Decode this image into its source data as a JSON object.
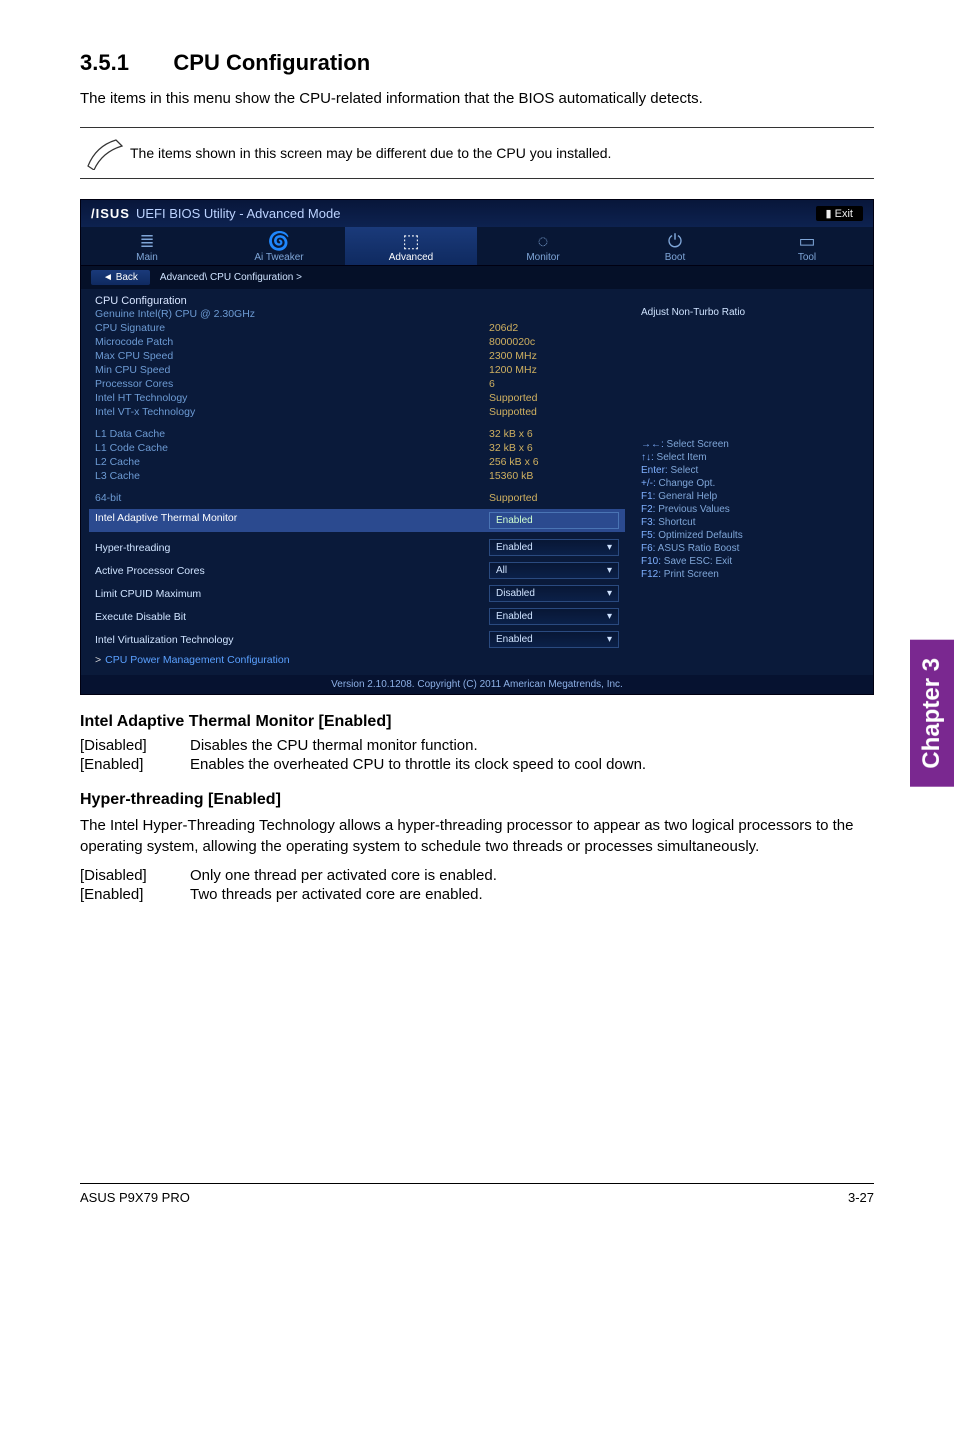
{
  "chapter_tab": "Chapter 3",
  "heading": {
    "num": "3.5.1",
    "title": "CPU Configuration"
  },
  "intro": "The items in this menu show the CPU-related information that the BIOS automatically detects.",
  "note": "The items shown in this screen may be different due to the CPU you installed.",
  "bios": {
    "brand": "/ISUS",
    "title": "UEFI BIOS Utility - Advanced Mode",
    "exit": "Exit",
    "tabs": [
      "Main",
      "Ai Tweaker",
      "Advanced",
      "Monitor",
      "Boot",
      "Tool"
    ],
    "active_tab_index": 2,
    "breadcrumb_back": "Back",
    "breadcrumb_path": "Advanced\\ CPU Configuration >",
    "section_title": "CPU Configuration",
    "cpu_name": "Genuine Intel(R) CPU @ 2.30GHz",
    "info_rows": [
      {
        "k": "CPU Signature",
        "v": "206d2"
      },
      {
        "k": "Microcode Patch",
        "v": "8000020c"
      },
      {
        "k": "Max CPU Speed",
        "v": "2300 MHz"
      },
      {
        "k": "Min CPU Speed",
        "v": "1200 MHz"
      },
      {
        "k": "Processor Cores",
        "v": "6"
      },
      {
        "k": "Intel HT Technology",
        "v": "Supported"
      },
      {
        "k": "Intel VT-x Technology",
        "v": "Suppotted"
      }
    ],
    "cache_rows": [
      {
        "k": "L1 Data Cache",
        "v": "32 kB x 6"
      },
      {
        "k": "L1 Code Cache",
        "v": "32 kB x 6"
      },
      {
        "k": "L2 Cache",
        "v": "256 kB x 6"
      },
      {
        "k": "L3 Cache",
        "v": "15360 kB"
      }
    ],
    "bit64_row": {
      "k": "64-bit",
      "v": "Supported"
    },
    "highlight": {
      "k": "Intel Adaptive Thermal Monitor",
      "v": "Enabled"
    },
    "options": [
      {
        "k": "Hyper-threading",
        "v": "Enabled"
      },
      {
        "k": "Active Processor Cores",
        "v": "All"
      },
      {
        "k": "Limit CPUID Maximum",
        "v": "Disabled"
      },
      {
        "k": "Execute Disable Bit",
        "v": "Enabled"
      },
      {
        "k": "Intel Virtualization Technology",
        "v": "Enabled"
      }
    ],
    "link": "CPU Power Management Configuration",
    "right_title": "Adjust Non-Turbo Ratio",
    "help": [
      {
        "key": "→←:",
        "txt": "Select Screen"
      },
      {
        "key": "↑↓:",
        "txt": "Select Item"
      },
      {
        "key": "Enter:",
        "txt": "Select"
      },
      {
        "key": "+/-:",
        "txt": "Change Opt."
      },
      {
        "key": "F1:",
        "txt": "General Help"
      },
      {
        "key": "F2:",
        "txt": "Previous Values"
      },
      {
        "key": "F3:",
        "txt": "Shortcut"
      },
      {
        "key": "F5:",
        "txt": "Optimized Defaults"
      },
      {
        "key": "F6:",
        "txt": "ASUS Ratio Boost"
      },
      {
        "key": "F10:",
        "txt": "Save   ESC: Exit"
      },
      {
        "key": "F12:",
        "txt": "Print Screen"
      }
    ],
    "footer": "Version 2.10.1208.  Copyright (C) 2011 American Megatrends, Inc."
  },
  "subsections": {
    "s1_title": "Intel Adaptive Thermal Monitor [Enabled]",
    "s1_rows": [
      {
        "term": "[Disabled]",
        "def": "Disables the CPU thermal monitor function."
      },
      {
        "term": "[Enabled]",
        "def": "Enables the overheated CPU to throttle its clock speed to cool down."
      }
    ],
    "s2_title": "Hyper-threading [Enabled]",
    "s2_body": "The Intel Hyper-Threading Technology allows a hyper-threading processor to appear as two logical processors to the operating system, allowing the operating system to schedule two threads or processes simultaneously.",
    "s2_rows": [
      {
        "term": "[Disabled]",
        "def": "Only one thread per activated core is enabled."
      },
      {
        "term": "[Enabled]",
        "def": "Two threads per activated core are enabled."
      }
    ]
  },
  "page_footer": {
    "left": "ASUS P9X79 PRO",
    "right": "3-27"
  }
}
